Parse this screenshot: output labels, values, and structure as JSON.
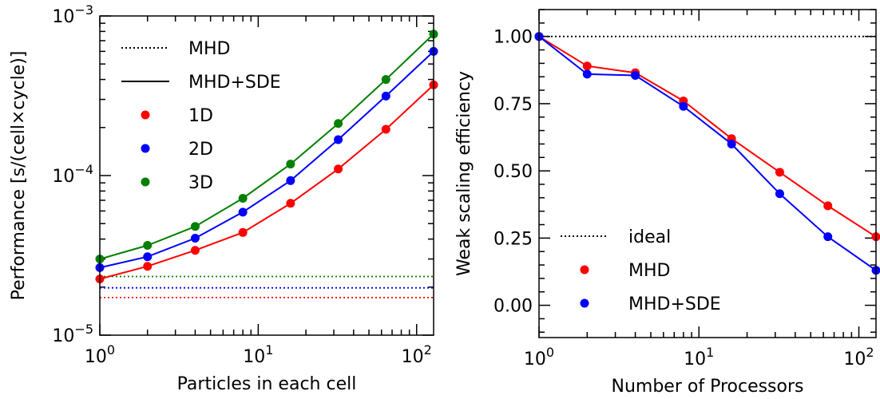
{
  "chart_data": [
    {
      "type": "line",
      "title": "",
      "xlabel": "Particles in each cell",
      "ylabel": "Performance [s/(cell×cycle)]",
      "xscale": "log",
      "yscale": "log",
      "xlim": [
        1,
        128
      ],
      "ylim": [
        1e-05,
        0.001
      ],
      "x_ticks": [
        {
          "value": 1,
          "base": "10",
          "exp": "0"
        },
        {
          "value": 10,
          "base": "10",
          "exp": "1"
        },
        {
          "value": 100,
          "base": "10",
          "exp": "2"
        }
      ],
      "y_ticks": [
        {
          "value": 1e-05,
          "base": "10",
          "exp": "−5"
        },
        {
          "value": 0.0001,
          "base": "10",
          "exp": "−4"
        },
        {
          "value": 0.001,
          "base": "10",
          "exp": "−3"
        }
      ],
      "x": [
        1,
        2,
        4,
        8,
        16,
        32,
        64,
        128
      ],
      "series": [
        {
          "name": "1D",
          "color": "#ff0000",
          "values": [
            2.25e-05,
            2.7e-05,
            3.4e-05,
            4.4e-05,
            6.7e-05,
            0.00011,
            0.000195,
            0.00037
          ],
          "mhd_level": 1.72e-05
        },
        {
          "name": "2D",
          "color": "#0000ff",
          "values": [
            2.65e-05,
            3.1e-05,
            4.05e-05,
            5.9e-05,
            9.3e-05,
            0.000168,
            0.000315,
            0.0006
          ],
          "mhd_level": 1.98e-05
        },
        {
          "name": "3D",
          "color": "#008000",
          "values": [
            3e-05,
            3.65e-05,
            4.8e-05,
            7.2e-05,
            0.000118,
            0.000212,
            0.0004,
            0.00077
          ],
          "mhd_level": 2.33e-05
        }
      ],
      "legend": {
        "position": "top-left",
        "entries": [
          {
            "label": "MHD",
            "style": "dotted",
            "color": "#000000"
          },
          {
            "label": "MHD+SDE",
            "style": "solid",
            "color": "#000000"
          },
          {
            "label": "1D",
            "style": "marker",
            "color": "#ff0000"
          },
          {
            "label": "2D",
            "style": "marker",
            "color": "#0000ff"
          },
          {
            "label": "3D",
            "style": "marker",
            "color": "#008000"
          }
        ]
      },
      "grid": false
    },
    {
      "type": "line",
      "title": "",
      "xlabel": "Number of Processors",
      "ylabel": "Weak scaling efficiency",
      "xscale": "log",
      "yscale": "linear",
      "xlim": [
        1,
        128
      ],
      "ylim": [
        -0.12,
        1.1
      ],
      "x_ticks": [
        {
          "value": 1,
          "base": "10",
          "exp": "0"
        },
        {
          "value": 10,
          "base": "10",
          "exp": "1"
        },
        {
          "value": 100,
          "base": "10",
          "exp": "2"
        }
      ],
      "y_ticks": [
        {
          "value": 0.0,
          "label": "0.00"
        },
        {
          "value": 0.25,
          "label": "0.25"
        },
        {
          "value": 0.5,
          "label": "0.50"
        },
        {
          "value": 0.75,
          "label": "0.75"
        },
        {
          "value": 1.0,
          "label": "1.00"
        }
      ],
      "x": [
        1,
        2,
        4,
        8,
        16,
        32,
        64,
        128
      ],
      "ideal": 1.0,
      "series": [
        {
          "name": "MHD",
          "color": "#ff0000",
          "values": [
            1.0,
            0.89,
            0.865,
            0.76,
            0.62,
            0.495,
            0.37,
            0.255
          ]
        },
        {
          "name": "MHD+SDE",
          "color": "#0000ff",
          "values": [
            1.0,
            0.86,
            0.855,
            0.74,
            0.6,
            0.415,
            0.255,
            0.13
          ]
        }
      ],
      "legend": {
        "position": "lower-left",
        "entries": [
          {
            "label": "ideal",
            "style": "dotted",
            "color": "#000000"
          },
          {
            "label": "MHD",
            "style": "marker",
            "color": "#ff0000"
          },
          {
            "label": "MHD+SDE",
            "style": "marker",
            "color": "#0000ff"
          }
        ]
      },
      "grid": false
    }
  ]
}
